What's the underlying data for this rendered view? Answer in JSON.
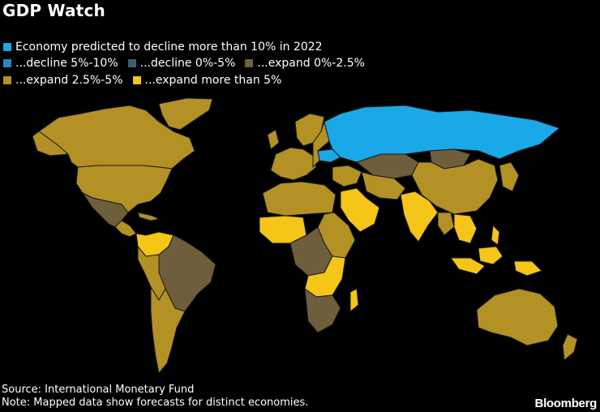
{
  "title": "GDP Watch",
  "legend": [
    {
      "label": "Economy predicted to decline more than 10% in 2022",
      "color": "#1aa8e8"
    },
    {
      "label": "...decline 5%-10%",
      "color": "#2689c4"
    },
    {
      "label": "...decline 0%-5%",
      "color": "#3a5e72"
    },
    {
      "label": "...expand 0%-2.5%",
      "color": "#6e5e3c"
    },
    {
      "label": "...expand 2.5%-5%",
      "color": "#b39125"
    },
    {
      "label": "...expand more than 5%",
      "color": "#f5c518"
    }
  ],
  "colors": {
    "background": "#000000",
    "border": "#1a1a1a",
    "no_data": "#000000"
  },
  "footer": {
    "source": "Source: International Monetary Fund",
    "note": "Note: Mapped data show forecasts for distinct economies."
  },
  "brand": "Bloomberg"
}
